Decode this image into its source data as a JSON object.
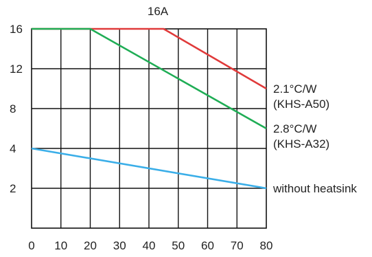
{
  "chart_data": {
    "type": "line",
    "title": "16A",
    "xlabel": "",
    "ylabel": "",
    "xlim": [
      0,
      80
    ],
    "x_ticks": [
      "0",
      "10",
      "20",
      "30",
      "40",
      "50",
      "60",
      "70",
      "80"
    ],
    "x_tick_values": [
      0,
      10,
      20,
      30,
      40,
      50,
      60,
      70,
      80
    ],
    "y_ticks": [
      "2",
      "4",
      "8",
      "12",
      "16"
    ],
    "grid": true,
    "series": [
      {
        "name_line1": "2.1°C/W",
        "name_line2": "(KHS-A50)",
        "color": "#e03a3a",
        "x": [
          0,
          45,
          80
        ],
        "y": [
          16,
          16,
          10
        ]
      },
      {
        "name_line1": "2.8°C/W",
        "name_line2": "(KHS-A32)",
        "color": "#1fad55",
        "x": [
          0,
          20,
          80
        ],
        "y": [
          16,
          16,
          6
        ]
      },
      {
        "name_line1": "without heatsink",
        "name_line2": "",
        "color": "#3aaee8",
        "x": [
          0,
          80
        ],
        "y": [
          4,
          2
        ]
      }
    ]
  }
}
